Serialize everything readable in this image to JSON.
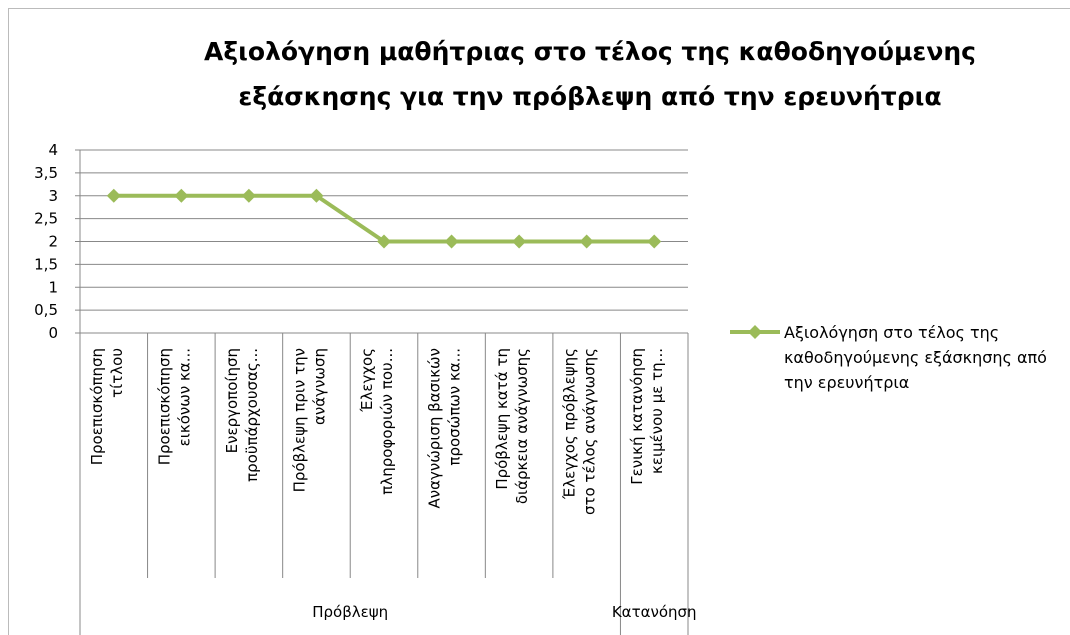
{
  "chart_data": {
    "type": "line",
    "title": [
      "Αξιολόγηση μαθήτριας στο τέλος της καθοδηγούμενης",
      "εξάσκησης  για την πρόβλεψη από την ερευνήτρια"
    ],
    "categories": [
      [
        "Προεπισκόπηση",
        "τίτλου"
      ],
      [
        "Προεπισκόπηση",
        "εικόνων κα..."
      ],
      [
        "Ενεργοποίηση",
        "προϋπάρχουσας..."
      ],
      [
        "Πρόβλεψη πριν την",
        "ανάγνωση"
      ],
      [
        "Έλεγχος",
        "πληροφοριών που..."
      ],
      [
        "Αναγνώριση βασικών",
        "προσώπων κα..."
      ],
      [
        "Πρόβλεψη κατά τη",
        "διάρκεια ανάγνωσης"
      ],
      [
        "Έλεγχος πρόβλεψης",
        "στο τέλος ανάγνωσης"
      ],
      [
        "Γενική κατανόηση",
        "κειμένου με τη..."
      ]
    ],
    "groups": [
      {
        "label": "Πρόβλεψη",
        "span": 8
      },
      {
        "label": "Κατανόηση",
        "span": 1
      }
    ],
    "series": [
      {
        "name": "Αξιολόγηση στο τέλος της καθοδηγούμενης εξάσκησης από την ερευνήτρια",
        "color": "#9bbb59",
        "values": [
          3,
          3,
          3,
          3,
          2,
          2,
          2,
          2,
          2
        ]
      }
    ],
    "ylim": [
      0,
      4
    ],
    "yticks": [
      0,
      {
        "value": 0.5,
        "label": "0,5"
      },
      1,
      {
        "value": 1.5,
        "label": "1,5"
      },
      2,
      {
        "value": 2.5,
        "label": "2,5"
      },
      3,
      {
        "value": 3.5,
        "label": "3,5"
      },
      4
    ],
    "grid": true,
    "legend": "right"
  }
}
